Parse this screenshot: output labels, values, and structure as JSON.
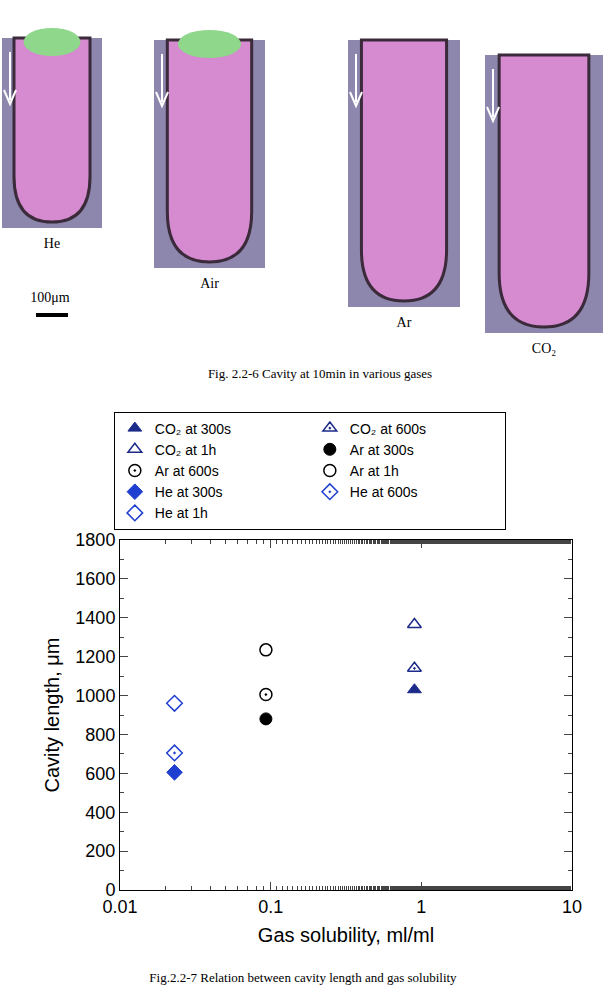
{
  "figure_top": {
    "panels": [
      {
        "label": "He"
      },
      {
        "label": "Air"
      },
      {
        "label": "Ar"
      },
      {
        "label": "CO₂"
      }
    ],
    "scale_bar": "100μm",
    "caption": "Fig. 2.2-6 Cavity at 10min in various gases"
  },
  "chart_data": {
    "type": "scatter",
    "x_label": "Gas solubility, ml/ml",
    "y_label": "Cavity length, μm",
    "log": "x",
    "xlim": [
      0.01,
      10
    ],
    "xticks": [
      0.01,
      0.1,
      1,
      10
    ],
    "ylim": [
      0,
      1800
    ],
    "yticks": [
      0,
      200,
      400,
      600,
      800,
      1000,
      1200,
      1400,
      1600,
      1800
    ],
    "grid": false,
    "legend": "top",
    "series": [
      {
        "name": "CO₂ at 300s",
        "color": "#1c2a8a",
        "marker": "triangle-up",
        "x": [
          0.9
        ],
        "values": [
          1030
        ]
      },
      {
        "name": "CO₂ at 600s",
        "color": "#1c2a8a",
        "marker": "triangle-up-open-dot",
        "x": [
          0.9
        ],
        "values": [
          1140
        ]
      },
      {
        "name": "CO₂ at 1h",
        "color": "#1c2a8a",
        "marker": "triangle-up-open",
        "x": [
          0.9
        ],
        "values": [
          1365
        ]
      },
      {
        "name": "Ar at 300s",
        "color": "#000000",
        "marker": "circle",
        "x": [
          0.093
        ],
        "values": [
          880
        ]
      },
      {
        "name": "Ar at 600s",
        "color": "#000000",
        "marker": "circle-open-dot",
        "x": [
          0.093
        ],
        "values": [
          1005
        ]
      },
      {
        "name": "Ar at 1h",
        "color": "#000000",
        "marker": "circle-open",
        "x": [
          0.093
        ],
        "values": [
          1235
        ]
      },
      {
        "name": "He at 300s",
        "color": "#1f3fd0",
        "marker": "diamond",
        "x": [
          0.023
        ],
        "values": [
          605
        ]
      },
      {
        "name": "He at 600s",
        "color": "#1f3fd0",
        "marker": "diamond-open-dot",
        "x": [
          0.023
        ],
        "values": [
          705
        ]
      },
      {
        "name": "He at 1h",
        "color": "#1f3fd0",
        "marker": "diamond-open",
        "x": [
          0.023
        ],
        "values": [
          960
        ]
      }
    ]
  },
  "chart_caption": "Fig.2.2-7 Relation between cavity length and gas solubility"
}
